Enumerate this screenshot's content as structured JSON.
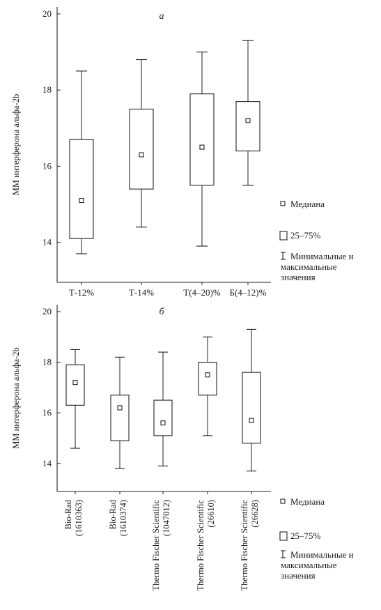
{
  "chart_data": [
    {
      "type": "box",
      "panel_label": "а",
      "ylabel": "ММ интерферона альфа-2b",
      "ylim": [
        13,
        20
      ],
      "yticks": [
        14,
        16,
        18,
        20
      ],
      "grid": false,
      "categories": [
        "Т-12%",
        "Т-14%",
        "Т(4–20)%",
        "Б(4–12)%"
      ],
      "boxes": [
        {
          "min": 13.7,
          "q1": 14.1,
          "median": 15.1,
          "q3": 16.7,
          "max": 18.5
        },
        {
          "min": 14.4,
          "q1": 15.4,
          "median": 16.3,
          "q3": 17.5,
          "max": 18.8
        },
        {
          "min": 13.9,
          "q1": 15.5,
          "median": 16.5,
          "q3": 17.9,
          "max": 19.0
        },
        {
          "min": 15.5,
          "q1": 16.4,
          "median": 17.2,
          "q3": 17.7,
          "max": 19.3
        }
      ],
      "legend": {
        "position": "right",
        "median": "Медиана",
        "box": "25–75%",
        "range": "Минимальные и максимальные значения"
      }
    },
    {
      "type": "box",
      "panel_label": "б",
      "ylabel": "ММ интерферона альфа-2b",
      "ylim": [
        13,
        20.6
      ],
      "yticks": [
        14,
        16,
        18,
        20
      ],
      "grid": false,
      "categories": [
        "Bio-Rad (1610363)",
        "Bio-Rad (1610374)",
        "Thermo Fischer Scientific (1047012)",
        "Thermo Fischer Scientific (26610)",
        "Thermo Fischer Scientific (26628)"
      ],
      "category_lines": [
        [
          "Bio-Rad",
          "(1610363)"
        ],
        [
          "Bio-Rad",
          "(1610374)"
        ],
        [
          "Thermo Fischer Scientific",
          "(1047012)"
        ],
        [
          "Thermo Fischer Scientific",
          "(26610)"
        ],
        [
          "Thermo Fischer Scientific",
          "(26628)"
        ]
      ],
      "boxes": [
        {
          "min": 14.6,
          "q1": 16.3,
          "median": 17.2,
          "q3": 17.9,
          "max": 18.5
        },
        {
          "min": 13.8,
          "q1": 14.9,
          "median": 16.2,
          "q3": 16.7,
          "max": 18.2
        },
        {
          "min": 13.9,
          "q1": 15.1,
          "median": 15.6,
          "q3": 16.5,
          "max": 18.4
        },
        {
          "min": 15.1,
          "q1": 16.7,
          "median": 17.5,
          "q3": 18.0,
          "max": 19.0
        },
        {
          "min": 13.7,
          "q1": 14.8,
          "median": 15.7,
          "q3": 17.6,
          "max": 19.3
        }
      ],
      "legend": {
        "position": "right",
        "median": "Медиана",
        "box": "25–75%",
        "range": "Минимальные и максимальные значения"
      }
    }
  ]
}
